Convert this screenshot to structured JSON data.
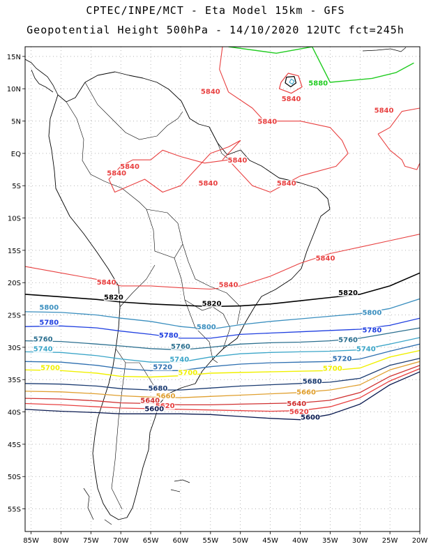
{
  "title": {
    "line1": "CPTEC/INPE/MCT -  Eta Model 15km - GFS",
    "line2": "Geopotential Height 500hPa - 14/10/2020 12UTC fct=245h"
  },
  "map": {
    "lon_range": [
      -86,
      -20
    ],
    "lat_range": [
      -58.5,
      16.5
    ],
    "lon_ticks": [
      "85W",
      "80W",
      "75W",
      "70W",
      "65W",
      "60W",
      "55W",
      "50W",
      "45W",
      "40W",
      "35W",
      "30W",
      "25W",
      "20W"
    ],
    "lat_ticks": [
      "15N",
      "10N",
      "5N",
      "EQ",
      "5S",
      "10S",
      "15S",
      "20S",
      "25S",
      "30S",
      "35S",
      "40S",
      "45S",
      "50S",
      "55S"
    ],
    "grid": "dotted"
  },
  "colors": {
    "5880": "#22cc22",
    "5860": "#44aacc",
    "5840": "#e84040",
    "5820": "#000000",
    "5800": "#3b8fbf",
    "5780": "#1f3fe0",
    "5760": "#2b6f8f",
    "5740": "#3ba5c8",
    "5720": "#2e6fb0",
    "5700": "#f0f000",
    "5680": "#1a3a70",
    "5660": "#e0a030",
    "5640": "#d03030",
    "5620": "#e84040",
    "5600": "#0a1a50",
    "coast": "#000000",
    "grid": "#888888"
  },
  "contour_labels": [
    {
      "text": "5880",
      "level": "5880",
      "lon": -37,
      "lat": 10.5
    },
    {
      "text": "5840",
      "level": "5840",
      "lon": -55,
      "lat": 9.2
    },
    {
      "text": "5840",
      "level": "5840",
      "lon": -41.5,
      "lat": 8.1
    },
    {
      "text": "5840",
      "level": "5840",
      "lon": -45.5,
      "lat": 4.6
    },
    {
      "text": "5840",
      "level": "5840",
      "lon": -26,
      "lat": 6.3
    },
    {
      "text": "5840",
      "level": "5840",
      "lon": -68.5,
      "lat": -2.4
    },
    {
      "text": "5840",
      "level": "5840",
      "lon": -70.7,
      "lat": -3.4
    },
    {
      "text": "5840",
      "level": "5840",
      "lon": -50.5,
      "lat": -1.4
    },
    {
      "text": "5840",
      "level": "5840",
      "lon": -55.4,
      "lat": -5
    },
    {
      "text": "5840",
      "level": "5840",
      "lon": -42.3,
      "lat": -5
    },
    {
      "text": "5840",
      "level": "5840",
      "lon": -35.8,
      "lat": -16.6
    },
    {
      "text": "5840",
      "level": "5840",
      "lon": -72.4,
      "lat": -20.3
    },
    {
      "text": "5840",
      "level": "5840",
      "lon": -52,
      "lat": -20.7
    },
    {
      "text": "5820",
      "level": "5820",
      "lon": -71.2,
      "lat": -22.6
    },
    {
      "text": "5820",
      "level": "5820",
      "lon": -54.8,
      "lat": -23.6
    },
    {
      "text": "5820",
      "level": "5820",
      "lon": -32,
      "lat": -21.9
    },
    {
      "text": "5800",
      "level": "5800",
      "lon": -82,
      "lat": -24.2
    },
    {
      "text": "5800",
      "level": "5800",
      "lon": -55.7,
      "lat": -27.2
    },
    {
      "text": "5800",
      "level": "5800",
      "lon": -28,
      "lat": -25
    },
    {
      "text": "5780",
      "level": "5780",
      "lon": -82,
      "lat": -26.5
    },
    {
      "text": "5780",
      "level": "5780",
      "lon": -62,
      "lat": -28.5
    },
    {
      "text": "5780",
      "level": "5780",
      "lon": -28,
      "lat": -27.7
    },
    {
      "text": "5760",
      "level": "5760",
      "lon": -83,
      "lat": -29.1
    },
    {
      "text": "5760",
      "level": "5760",
      "lon": -60,
      "lat": -30.2
    },
    {
      "text": "5760",
      "level": "5760",
      "lon": -32,
      "lat": -29.2
    },
    {
      "text": "5740",
      "level": "5740",
      "lon": -83,
      "lat": -30.6
    },
    {
      "text": "5740",
      "level": "5740",
      "lon": -60.2,
      "lat": -32.2
    },
    {
      "text": "5740",
      "level": "5740",
      "lon": -29,
      "lat": -30.6
    },
    {
      "text": "5720",
      "level": "5720",
      "lon": -63,
      "lat": -33.4
    },
    {
      "text": "5720",
      "level": "5720",
      "lon": -33,
      "lat": -32.1
    },
    {
      "text": "5700",
      "level": "5700",
      "lon": -81.8,
      "lat": -33.5
    },
    {
      "text": "5700",
      "level": "5700",
      "lon": -58.8,
      "lat": -34.3
    },
    {
      "text": "5700",
      "level": "5700",
      "lon": -34.6,
      "lat": -33.6
    },
    {
      "text": "5680",
      "level": "5680",
      "lon": -63.8,
      "lat": -36.7
    },
    {
      "text": "5680",
      "level": "5680",
      "lon": -38,
      "lat": -35.6
    },
    {
      "text": "5660",
      "level": "5660",
      "lon": -62.5,
      "lat": -37.9
    },
    {
      "text": "5660",
      "level": "5660",
      "lon": -39,
      "lat": -37.3
    },
    {
      "text": "5640",
      "level": "5640",
      "lon": -65.1,
      "lat": -38.6
    },
    {
      "text": "5640",
      "level": "5640",
      "lon": -40.6,
      "lat": -39.1
    },
    {
      "text": "5620",
      "level": "5620",
      "lon": -62.6,
      "lat": -39.4
    },
    {
      "text": "5620",
      "level": "5620",
      "lon": -40.2,
      "lat": -40.3
    },
    {
      "text": "5600",
      "level": "5600",
      "lon": -64.4,
      "lat": -39.9
    },
    {
      "text": "5600",
      "level": "5600",
      "lon": -38.3,
      "lat": -41.2
    }
  ]
}
